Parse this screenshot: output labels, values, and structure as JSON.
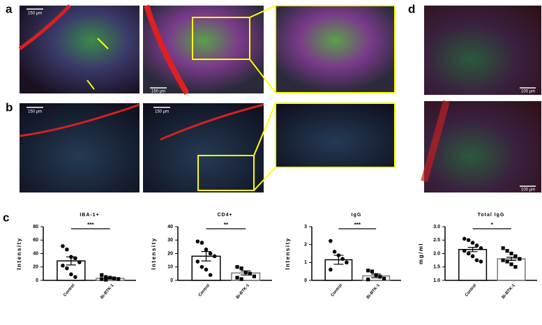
{
  "panel_labels": [
    "a",
    "b",
    "c",
    "d"
  ],
  "scale_bars": [
    "150 μm",
    "150 μm",
    "150 μm",
    "150 μm",
    "100 μm",
    "100 μm"
  ],
  "chart_data": [
    {
      "type": "bar",
      "title": "IBA-1+",
      "y_label": "Intensity",
      "categories": [
        "Control",
        "Bi-BTK-1"
      ],
      "values": [
        29,
        3
      ],
      "errors": [
        6,
        1
      ],
      "significance": "***",
      "points": [
        [
          51,
          46,
          35,
          33,
          27,
          22,
          18,
          9,
          5
        ],
        [
          8,
          5,
          4,
          3,
          2,
          2,
          1
        ]
      ],
      "ylim": [
        0,
        80
      ],
      "yticks": [
        0,
        20,
        40,
        60,
        80
      ]
    },
    {
      "type": "bar",
      "title": "CD4+",
      "y_label": "Intensity",
      "categories": [
        "Control",
        "Bi-BTK-1"
      ],
      "values": [
        18,
        5.5
      ],
      "errors": [
        3.5,
        1.5
      ],
      "significance": "**",
      "points": [
        [
          29,
          28,
          23,
          20,
          18,
          14,
          10,
          8,
          4
        ],
        [
          10,
          9,
          6,
          5,
          3,
          2,
          1
        ]
      ],
      "ylim": [
        0,
        40
      ],
      "yticks": [
        0,
        10,
        20,
        30,
        40
      ]
    },
    {
      "type": "bar",
      "title": "IgG",
      "y_label": "Intensity",
      "categories": [
        "Control",
        "Bi-BTK-1"
      ],
      "values": [
        1.15,
        0.25
      ],
      "errors": [
        0.25,
        0.1
      ],
      "significance": "***",
      "points": [
        [
          2.2,
          1.6,
          1.4,
          1.2,
          1.0,
          0.6
        ],
        [
          0.55,
          0.5,
          0.3,
          0.2,
          0.1,
          0.05
        ]
      ],
      "ylim": [
        0,
        3
      ],
      "yticks": [
        0,
        1,
        2,
        3
      ]
    },
    {
      "type": "bar",
      "title": "Total IgG",
      "y_label": "mg/ml",
      "categories": [
        "Control",
        "Bi-BTK-1"
      ],
      "values": [
        2.15,
        1.8
      ],
      "errors": [
        0.08,
        0.06
      ],
      "significance": "*",
      "points": [
        [
          2.55,
          2.5,
          2.4,
          2.3,
          2.2,
          2.1,
          2.0,
          1.9,
          1.75,
          1.7
        ],
        [
          2.2,
          2.1,
          2.0,
          1.9,
          1.8,
          1.75,
          1.7,
          1.6,
          1.5
        ]
      ],
      "ylim": [
        1,
        3
      ],
      "yticks": [
        {
          "value": 1,
          "label": "1.0"
        },
        {
          "value": 1.5,
          "label": "1.5"
        },
        {
          "value": 2,
          "label": "2.0"
        },
        {
          "value": 2.5,
          "label": "2.5"
        },
        {
          "value": 3,
          "label": "3.0"
        }
      ]
    }
  ]
}
